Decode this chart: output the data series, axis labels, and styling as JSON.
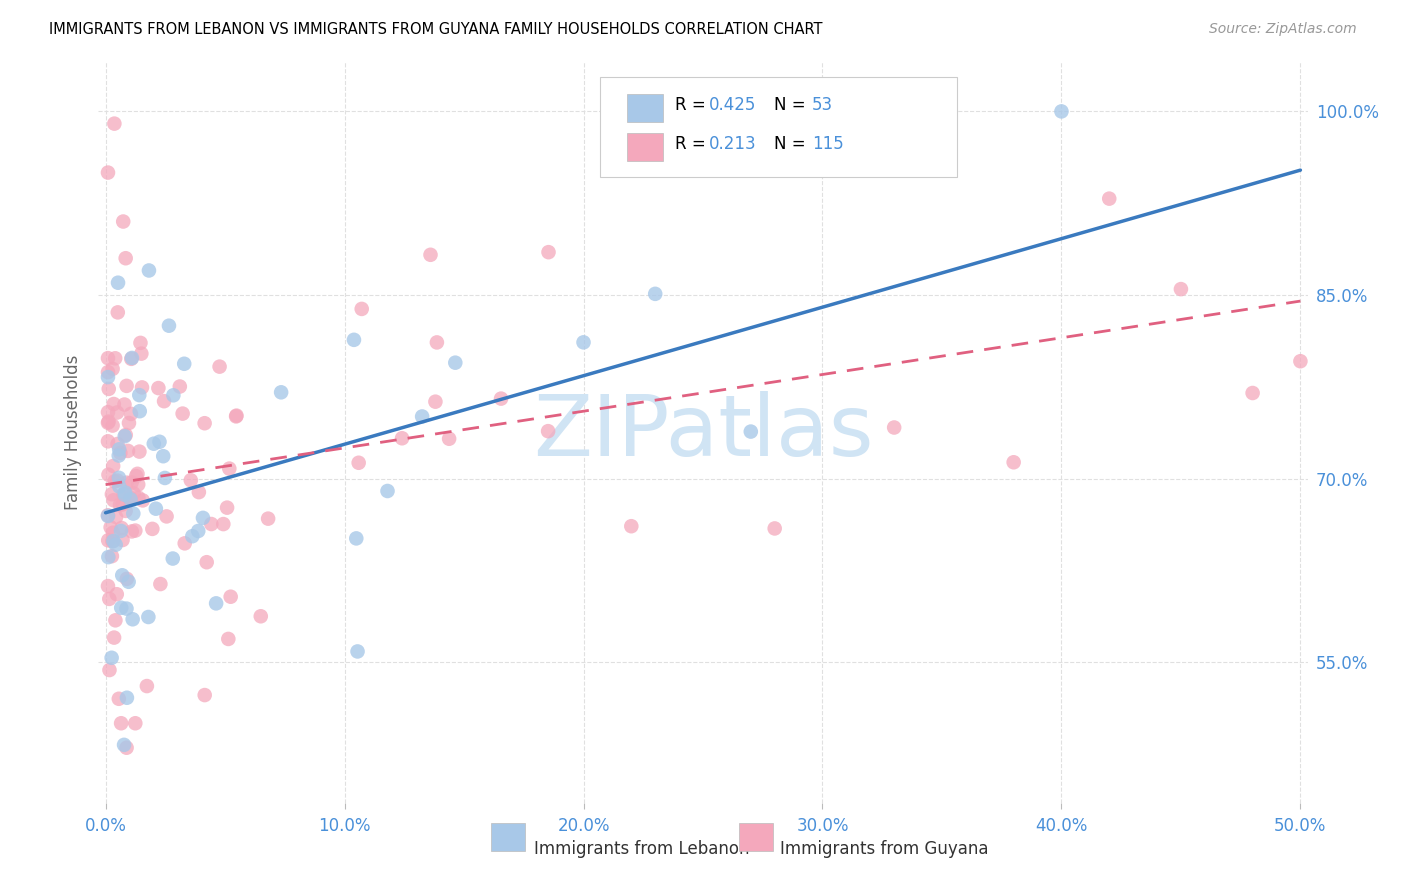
{
  "title": "IMMIGRANTS FROM LEBANON VS IMMIGRANTS FROM GUYANA FAMILY HOUSEHOLDS CORRELATION CHART",
  "source": "Source: ZipAtlas.com",
  "ylabel": "Family Households",
  "xlim": [
    -0.003,
    0.503
  ],
  "ylim": [
    0.435,
    1.04
  ],
  "xtick_vals": [
    0.0,
    0.1,
    0.2,
    0.3,
    0.4,
    0.5
  ],
  "ytick_vals": [
    0.55,
    0.7,
    0.85,
    1.0
  ],
  "ytick_labels": [
    "55.0%",
    "70.0%",
    "85.0%",
    "100.0%"
  ],
  "color_lebanon": "#a8c8e8",
  "color_guyana": "#f4a8bc",
  "color_lebanon_line": "#3a7abf",
  "color_guyana_line": "#e06080",
  "color_text_blue": "#4a90d9",
  "color_grid": "#e0e0e0",
  "watermark_color": "#d0e4f4",
  "leb_intercept": 0.672,
  "leb_slope": 0.56,
  "guy_intercept": 0.695,
  "guy_slope": 0.3,
  "legend_label1": "R =  0.425   N =  53",
  "legend_label2": "R =  0.213   N = 115",
  "bottom_label1": "Immigrants from Lebanon",
  "bottom_label2": "Immigrants from Guyana"
}
